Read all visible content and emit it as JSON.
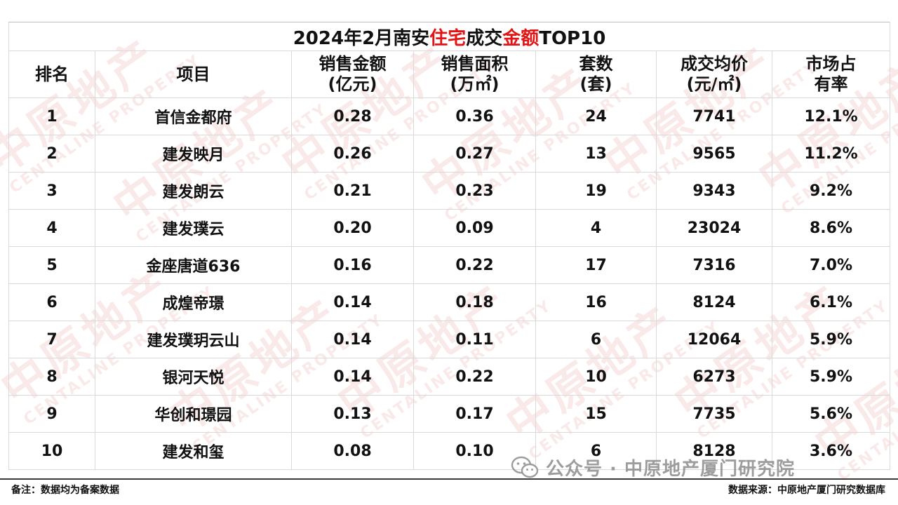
{
  "title": {
    "prefix": "2024年2月南安",
    "highlight1": "住宅",
    "middle": "成交",
    "highlight2": "金额",
    "suffix": "TOP10"
  },
  "headers": [
    {
      "line1": "排名",
      "line2": ""
    },
    {
      "line1": "项目",
      "line2": ""
    },
    {
      "line1": "销售金额",
      "line2": "(亿元)"
    },
    {
      "line1": "销售面积",
      "line2": "(万㎡)"
    },
    {
      "line1": "套数",
      "line2": "(套)"
    },
    {
      "line1": "成交均价",
      "line2": "(元/㎡)"
    },
    {
      "line1": "市场占",
      "line2": "有率"
    }
  ],
  "rows": [
    {
      "rank": "1",
      "project": "首信金都府",
      "amount": "0.28",
      "area": "0.36",
      "units": "24",
      "price": "7741",
      "share": "12.1%"
    },
    {
      "rank": "2",
      "project": "建发映月",
      "amount": "0.26",
      "area": "0.27",
      "units": "13",
      "price": "9565",
      "share": "11.2%"
    },
    {
      "rank": "3",
      "project": "建发朗云",
      "amount": "0.21",
      "area": "0.23",
      "units": "19",
      "price": "9343",
      "share": "9.2%"
    },
    {
      "rank": "4",
      "project": "建发璞云",
      "amount": "0.20",
      "area": "0.09",
      "units": "4",
      "price": "23024",
      "share": "8.6%"
    },
    {
      "rank": "5",
      "project": "金座唐道636",
      "amount": "0.16",
      "area": "0.22",
      "units": "17",
      "price": "7316",
      "share": "7.0%"
    },
    {
      "rank": "6",
      "project": "成煌帝璟",
      "amount": "0.14",
      "area": "0.18",
      "units": "16",
      "price": "8124",
      "share": "6.1%"
    },
    {
      "rank": "7",
      "project": "建发璞玥云山",
      "amount": "0.14",
      "area": "0.11",
      "units": "6",
      "price": "12064",
      "share": "5.9%"
    },
    {
      "rank": "8",
      "project": "银河天悦",
      "amount": "0.14",
      "area": "0.22",
      "units": "10",
      "price": "6273",
      "share": "5.9%"
    },
    {
      "rank": "9",
      "project": "华创和璟园",
      "amount": "0.13",
      "area": "0.17",
      "units": "15",
      "price": "7735",
      "share": "5.6%"
    },
    {
      "rank": "10",
      "project": "建发和玺",
      "amount": "0.08",
      "area": "0.10",
      "units": "6",
      "price": "8128",
      "share": "3.6%"
    }
  ],
  "footer": {
    "note": "备注：数据均为备案数据",
    "source": "数据来源：中原地产厦门研究数据库"
  },
  "wechat": {
    "text": "公众号 · 中原地产厦门研究院"
  },
  "watermark": {
    "cn": "中原地产",
    "en": "CENTALINE PROPERTY"
  },
  "colors": {
    "highlight": "#e31414",
    "grid": "#d9d9d9",
    "watermark": "#c82828"
  }
}
